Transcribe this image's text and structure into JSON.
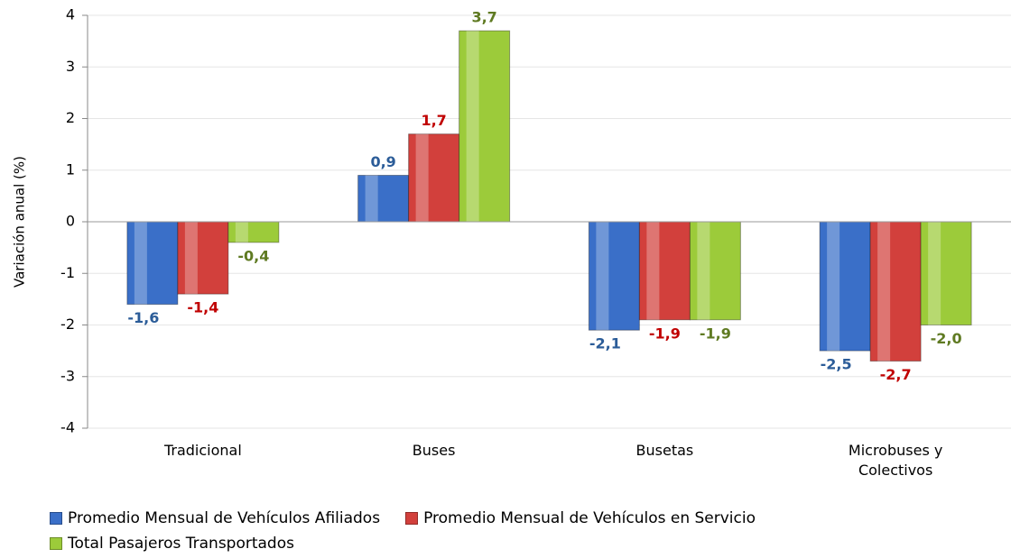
{
  "chart_data": {
    "type": "bar",
    "y_label": "Variación anual (%)",
    "categories": [
      "Tradicional",
      "Buses",
      "Busetas",
      "Microbuses y Colectivos"
    ],
    "series": [
      {
        "name": "Promedio Mensual de Vehículos Afiliados",
        "color": "#3a6fc8",
        "label_color": "#2b5c98",
        "values": [
          -1.6,
          0.9,
          -2.1,
          -2.5
        ],
        "value_labels": [
          "-1,6",
          "0,9",
          "-2,1",
          "-2,5"
        ]
      },
      {
        "name": "Promedio Mensual de Vehículos en Servicio",
        "color": "#d2403c",
        "label_color": "#c00000",
        "values": [
          -1.4,
          1.7,
          -1.9,
          -2.7
        ],
        "value_labels": [
          "-1,4",
          "1,7",
          "-1,9",
          "-2,7"
        ]
      },
      {
        "name": "Total Pasajeros Transportados",
        "color": "#9ccb3a",
        "label_color": "#5f7a22",
        "values": [
          -0.4,
          3.7,
          -1.9,
          -2.0
        ],
        "value_labels": [
          "-0,4",
          "3,7",
          "-1,9",
          "-2,0"
        ]
      }
    ],
    "ylim": [
      -4,
      4
    ],
    "yticks": [
      -4,
      -3,
      -2,
      -1,
      0,
      1,
      2,
      3,
      4
    ],
    "grid": true
  }
}
